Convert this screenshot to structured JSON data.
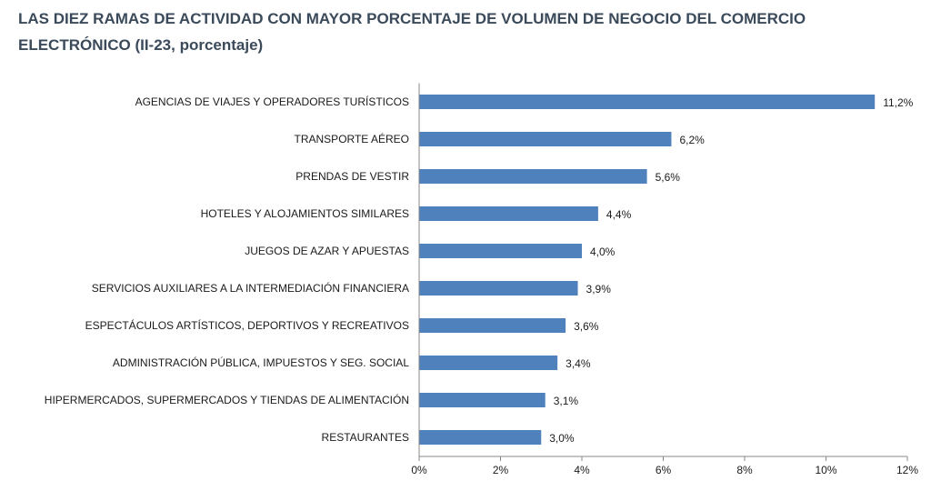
{
  "chart_data": {
    "type": "bar",
    "orientation": "horizontal",
    "title": "LAS DIEZ RAMAS DE ACTIVIDAD CON MAYOR PORCENTAJE DE VOLUMEN DE NEGOCIO DEL COMERCIO ELECTRÓNICO (II-23, porcentaje)",
    "categories": [
      "AGENCIAS DE VIAJES Y OPERADORES TURÍSTICOS",
      "TRANSPORTE AÉREO",
      "PRENDAS DE VESTIR",
      "HOTELES  Y ALOJAMIENTOS SIMILARES",
      "JUEGOS DE AZAR Y APUESTAS",
      "SERVICIOS AUXILIARES A LA INTERMEDIACIÓN FINANCIERA",
      "ESPECTÁCULOS ARTÍSTICOS, DEPORTIVOS Y RECREATIVOS",
      "ADMINISTRACIÓN PÚBLICA, IMPUESTOS Y SEG. SOCIAL",
      "HIPERMERCADOS, SUPERMERCADOS Y TIENDAS DE ALIMENTACIÓN",
      "RESTAURANTES"
    ],
    "values": [
      11.2,
      6.2,
      5.6,
      4.4,
      4.0,
      3.9,
      3.6,
      3.4,
      3.1,
      3.0
    ],
    "value_labels": [
      "11,2%",
      "6,2%",
      "5,6%",
      "4,4%",
      "4,0%",
      "3,9%",
      "3,6%",
      "3,4%",
      "3,1%",
      "3,0%"
    ],
    "xlim": [
      0,
      12
    ],
    "x_ticks": [
      0,
      2,
      4,
      6,
      8,
      10,
      12
    ],
    "x_tick_labels": [
      "0%",
      "2%",
      "4%",
      "6%",
      "8%",
      "10%",
      "12%"
    ],
    "grid": false,
    "bar_color": "#4f81bd"
  }
}
